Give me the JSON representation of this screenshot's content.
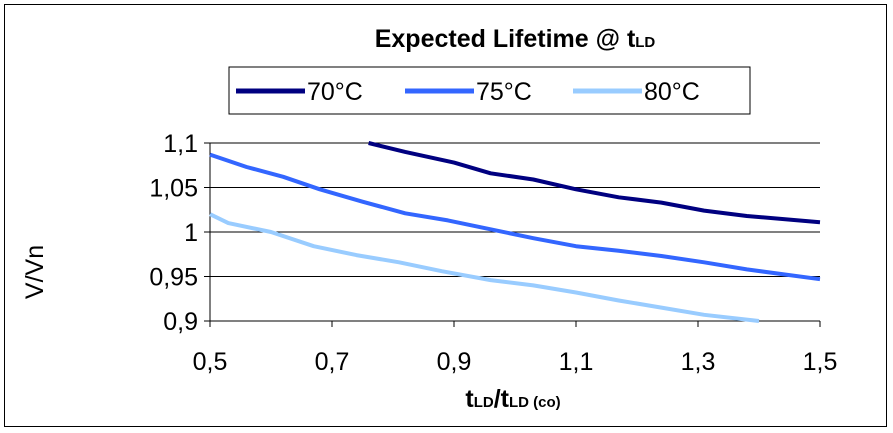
{
  "chart_data": {
    "type": "line",
    "title": {
      "main": "Expected Lifetime @ t",
      "subscript": "LD"
    },
    "xlabel": {
      "t1": "t",
      "s1": "LD",
      "t2": "/t",
      "s2": "LD (co)"
    },
    "ylabel": "V/Vn",
    "xlim": [
      0.5,
      1.5
    ],
    "ylim": [
      0.9,
      1.1
    ],
    "x_ticks": [
      "0,5",
      "0,7",
      "0,9",
      "1,1",
      "1,3",
      "1,5"
    ],
    "x_tick_values": [
      0.5,
      0.7,
      0.9,
      1.1,
      1.3,
      1.5
    ],
    "y_ticks": [
      "1,1",
      "1,05",
      "1",
      "0,95",
      "0,9"
    ],
    "y_tick_values": [
      1.1,
      1.05,
      1.0,
      0.95,
      0.9
    ],
    "grid": "horizontal",
    "legend_position": "top",
    "series": [
      {
        "name": "70°C",
        "color": "#000080",
        "points": [
          [
            0.76,
            1.1
          ],
          [
            0.82,
            1.09
          ],
          [
            0.9,
            1.078
          ],
          [
            0.96,
            1.066
          ],
          [
            1.03,
            1.059
          ],
          [
            1.1,
            1.048
          ],
          [
            1.17,
            1.039
          ],
          [
            1.24,
            1.033
          ],
          [
            1.31,
            1.024
          ],
          [
            1.38,
            1.018
          ],
          [
            1.5,
            1.011
          ]
        ]
      },
      {
        "name": "75°C",
        "color": "#3366ff",
        "points": [
          [
            0.5,
            1.087
          ],
          [
            0.56,
            1.073
          ],
          [
            0.62,
            1.062
          ],
          [
            0.68,
            1.048
          ],
          [
            0.75,
            1.034
          ],
          [
            0.82,
            1.021
          ],
          [
            0.89,
            1.013
          ],
          [
            0.96,
            1.003
          ],
          [
            1.03,
            0.993
          ],
          [
            1.1,
            0.984
          ],
          [
            1.17,
            0.979
          ],
          [
            1.24,
            0.973
          ],
          [
            1.31,
            0.966
          ],
          [
            1.38,
            0.958
          ],
          [
            1.5,
            0.947
          ]
        ]
      },
      {
        "name": "80°C",
        "color": "#99ccff",
        "points": [
          [
            0.5,
            1.02
          ],
          [
            0.53,
            1.01
          ],
          [
            0.6,
            1.0
          ],
          [
            0.67,
            0.984
          ],
          [
            0.74,
            0.974
          ],
          [
            0.81,
            0.966
          ],
          [
            0.88,
            0.956
          ],
          [
            0.96,
            0.946
          ],
          [
            1.03,
            0.94
          ],
          [
            1.1,
            0.932
          ],
          [
            1.17,
            0.923
          ],
          [
            1.24,
            0.915
          ],
          [
            1.31,
            0.907
          ],
          [
            1.4,
            0.9
          ]
        ]
      }
    ]
  }
}
